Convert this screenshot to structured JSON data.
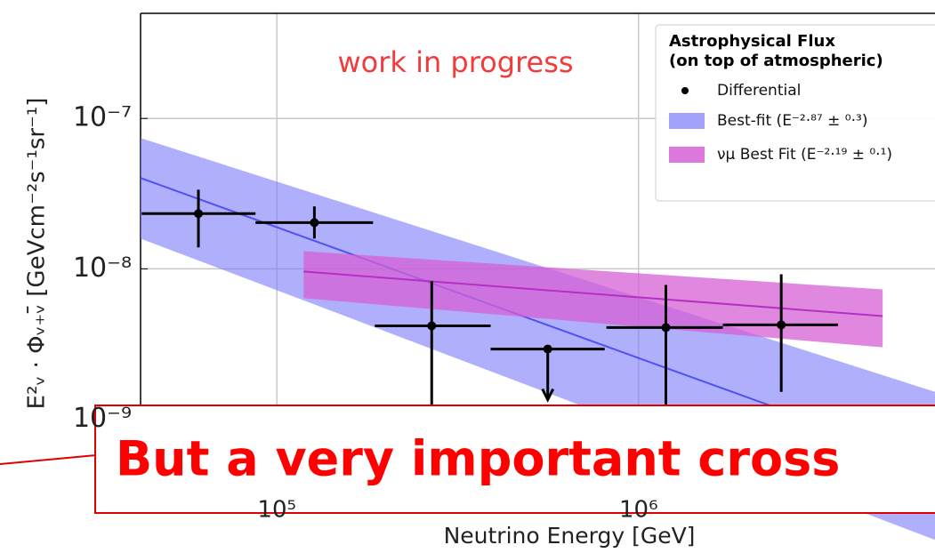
{
  "chart_data": {
    "type": "flux",
    "annotation": "work in progress",
    "callout": "But a very important cross",
    "xlabel": "Neutrino Energy [GeV]",
    "ylabel": "E²ᵥ · Φᵥ₊ᵥ̄ [GeVcm⁻²s⁻¹sr⁻¹]",
    "log_x": true,
    "log_y": true,
    "grid": true,
    "xlim": [
      42000,
      6600000
    ],
    "xticks": [
      {
        "value": 100000,
        "label": "10⁵"
      },
      {
        "value": 1000000,
        "label": "10⁶"
      }
    ],
    "ylim": [
      3e-10,
      5e-07
    ],
    "yticks": [
      {
        "value": 1e-07,
        "label": "10⁻⁷"
      },
      {
        "value": 1e-08,
        "label": "10⁻⁸"
      },
      {
        "value": 1e-09,
        "label": "10⁻⁹"
      }
    ],
    "legend_title": [
      "Astrophysical Flux",
      "(on top of atmospheric)"
    ],
    "legend_position": "upper right",
    "points": {
      "name": "Differential",
      "color": "#000000",
      "energy": [
        60700,
        127000,
        268000,
        561000,
        1190000,
        2480000
      ],
      "x_low": [
        42300,
        87300,
        186600,
        390000,
        815000,
        1710000
      ],
      "x_high": [
        87300,
        184500,
        390000,
        806000,
        1710000,
        3560000
      ],
      "flux": [
        2.33e-08,
        2.03e-08,
        4.18e-09,
        2.93e-09,
        4.07e-09,
        4.24e-09
      ],
      "flux_low": [
        1.39e-08,
        1.59e-08,
        1.16e-09,
        null,
        1e-09,
        1.52e-09
      ],
      "flux_high": [
        3.36e-08,
        2.6e-08,
        8.26e-09,
        null,
        7.82e-09,
        9.2e-09
      ],
      "upper_limit": [
        false,
        false,
        false,
        true,
        false,
        false
      ]
    },
    "series": [
      {
        "name": "Best-fit (E⁻²·⁸⁷ ± ⁰·³)",
        "color": "#5050f5",
        "fill": "#7a7afa",
        "x": [
          42000,
          6600000
        ],
        "values": [
          4.02e-08,
          4.95e-10
        ],
        "low": [
          1.59e-08,
          1.58e-10
        ],
        "high": [
          7.41e-08,
          1.52e-09
        ]
      },
      {
        "name": "νμ Best Fit (E⁻²·¹⁹ ± ⁰·¹)",
        "color": "#b52fc4",
        "fill": "#d65fd6",
        "x": [
          118600,
          4730000
        ],
        "values": [
          9.6e-09,
          4.85e-09
        ],
        "low": [
          6.38e-09,
          3.01e-09
        ],
        "high": [
          1.31e-08,
          7.3e-09
        ]
      }
    ]
  }
}
